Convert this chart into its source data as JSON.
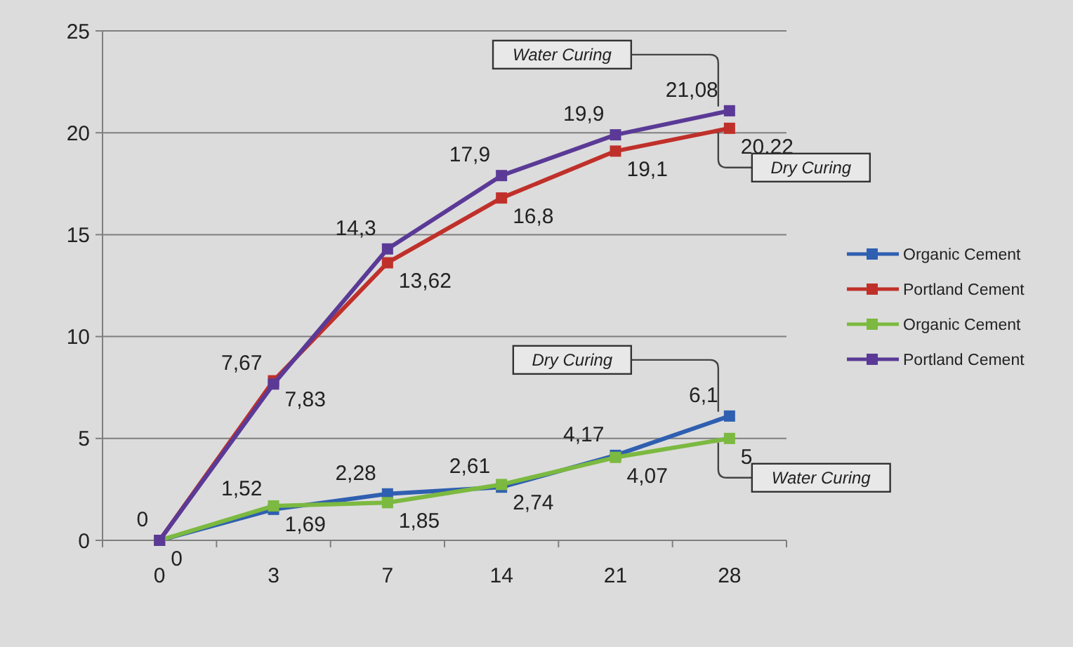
{
  "chart_data": {
    "type": "line",
    "categories": [
      "0",
      "3",
      "7",
      "14",
      "21",
      "28"
    ],
    "ylim": [
      0,
      25
    ],
    "yticks": [
      0,
      5,
      10,
      15,
      20,
      25
    ],
    "grid": "y",
    "legend": "right",
    "marker": "square",
    "series": [
      {
        "name": "Organic Cement",
        "color": "#2f5fb0",
        "values": [
          0,
          1.52,
          2.28,
          2.61,
          4.17,
          6.1
        ],
        "value_labels": [
          null,
          "1,52",
          "2,28",
          "2,61",
          "4,17",
          "6,1"
        ]
      },
      {
        "name": "Portland Cement",
        "color": "#c0302a",
        "values": [
          0,
          7.83,
          13.62,
          16.8,
          19.1,
          20.22
        ],
        "value_labels": [
          null,
          "7,83",
          "13,62",
          "16,8",
          "19,1",
          "20,22"
        ]
      },
      {
        "name": "Organic Cement",
        "color": "#7cb940",
        "values": [
          0,
          1.69,
          1.85,
          2.74,
          4.07,
          5
        ],
        "value_labels": [
          "0",
          "1,69",
          "1,85",
          "2,74",
          "4,07",
          "5"
        ]
      },
      {
        "name": "Portland Cement",
        "color": "#5a3a96",
        "values": [
          0,
          7.67,
          14.3,
          17.9,
          19.9,
          21.08
        ],
        "value_labels": [
          "0",
          "7,67",
          "14,3",
          "17,9",
          "19,9",
          "21,08"
        ]
      }
    ],
    "annotations": [
      {
        "text": "Water Curing",
        "x": "28",
        "y": 21.08
      },
      {
        "text": "Dry Curing",
        "x": "28",
        "y": 20.22
      },
      {
        "text": "Dry Curing",
        "x": "28",
        "y": 6.1
      },
      {
        "text": "Water Curing",
        "x": "28",
        "y": 5
      }
    ]
  }
}
